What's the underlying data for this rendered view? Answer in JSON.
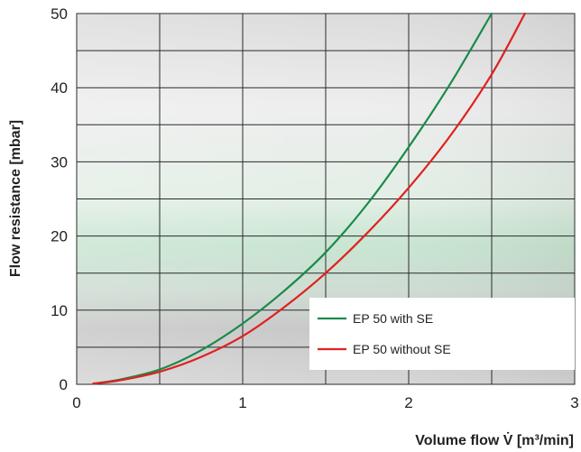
{
  "chart_data": {
    "type": "line",
    "xlabel": "Volume flow V̇ [m³/min]",
    "ylabel": "Flow resistance [mbar]",
    "xlim": [
      0,
      3
    ],
    "ylim": [
      0,
      50
    ],
    "x_ticks": [
      "0",
      "1",
      "2",
      "3"
    ],
    "y_ticks": [
      "0",
      "10",
      "20",
      "30",
      "40",
      "50"
    ],
    "grid": true,
    "legend_position": "bottom-right",
    "series": [
      {
        "name": "EP 50 with SE",
        "color": "#1a8a4a",
        "x": [
          0.1,
          0.25,
          0.5,
          0.75,
          1.0,
          1.25,
          1.5,
          1.75,
          2.0,
          2.25,
          2.5
        ],
        "y": [
          0.1,
          0.6,
          2.0,
          4.6,
          8.2,
          12.6,
          17.8,
          24.3,
          32.0,
          40.5,
          50.0
        ]
      },
      {
        "name": "EP 50 without SE",
        "color": "#e02020",
        "x": [
          0.1,
          0.25,
          0.5,
          0.75,
          1.0,
          1.25,
          1.5,
          1.75,
          2.0,
          2.25,
          2.5,
          2.7
        ],
        "y": [
          0.1,
          0.5,
          1.7,
          3.7,
          6.5,
          10.4,
          15.0,
          20.4,
          26.5,
          33.5,
          41.8,
          50.0
        ]
      }
    ]
  }
}
